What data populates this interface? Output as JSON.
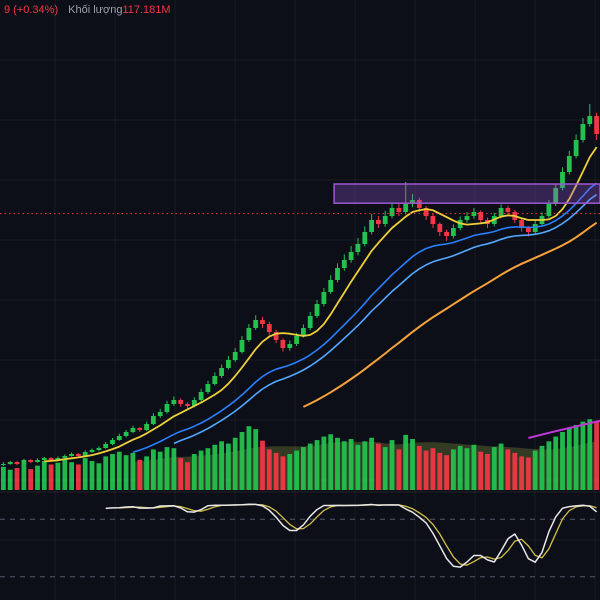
{
  "legend": {
    "price_change": "9 (+0.34%)",
    "volume_label": "Khối lượng",
    "volume_value": "117.181M"
  },
  "colors": {
    "background": "#0c0f17",
    "grid": "rgba(255,255,255,0.05)",
    "up": "#23c14e",
    "down": "#f23645",
    "pane_divider": "rgba(255,255,255,0.08)",
    "osc_level": "#515b6e"
  },
  "chart_data": {
    "type": "candlestick",
    "title": "",
    "xlabel": "",
    "ylabel": "",
    "axes_visible": false,
    "price_scale_note": "no axis labels visible; values are relative units",
    "candles": [
      [
        8.8,
        9.5,
        8.5,
        9
      ],
      [
        9,
        9.8,
        8.8,
        9.5
      ],
      [
        9.5,
        9.7,
        8.7,
        9
      ],
      [
        9,
        10.3,
        8.9,
        10
      ],
      [
        10,
        10.2,
        9.2,
        9.5
      ],
      [
        9.5,
        10.4,
        9.3,
        10
      ],
      [
        10,
        10.8,
        9.8,
        10.5
      ],
      [
        10.5,
        10.7,
        9.7,
        10
      ],
      [
        10,
        10.9,
        9.9,
        10.5
      ],
      [
        10.5,
        11.4,
        10.3,
        11
      ],
      [
        11,
        11.9,
        10.8,
        11.5
      ],
      [
        11.5,
        11.7,
        10.6,
        11
      ],
      [
        11,
        12.4,
        10.9,
        12
      ],
      [
        12,
        12.9,
        11.8,
        12.5
      ],
      [
        12.5,
        13.4,
        12.2,
        13
      ],
      [
        13,
        14.5,
        12.8,
        14
      ],
      [
        14,
        15.5,
        13.7,
        15
      ],
      [
        15,
        16.6,
        14.8,
        16
      ],
      [
        16,
        17.5,
        15.7,
        17
      ],
      [
        17,
        18.6,
        16.7,
        18
      ],
      [
        18,
        18.3,
        17,
        17.5
      ],
      [
        17.5,
        19.6,
        17.2,
        19
      ],
      [
        19,
        21.7,
        18.7,
        21
      ],
      [
        21,
        22.8,
        20.5,
        22
      ],
      [
        22,
        24.8,
        21.6,
        24
      ],
      [
        24,
        25.9,
        23.5,
        25
      ],
      [
        25,
        25.4,
        23.3,
        24
      ],
      [
        24,
        24.4,
        22.7,
        23.5
      ],
      [
        23.5,
        25.7,
        23.1,
        25
      ],
      [
        25,
        27.8,
        24.6,
        27
      ],
      [
        27,
        29.8,
        26.5,
        29
      ],
      [
        29,
        31.9,
        28.6,
        31
      ],
      [
        31,
        33.9,
        30.5,
        33
      ],
      [
        33,
        36,
        32.6,
        35
      ],
      [
        35,
        38,
        34.5,
        37
      ],
      [
        37,
        41,
        36.6,
        40
      ],
      [
        40,
        44,
        39.5,
        43
      ],
      [
        43,
        46.2,
        42.5,
        45
      ],
      [
        45,
        45.8,
        43,
        44
      ],
      [
        44,
        44.6,
        41.2,
        42
      ],
      [
        42,
        42.5,
        39.2,
        40
      ],
      [
        40,
        40.4,
        37.1,
        38
      ],
      [
        38,
        39.9,
        37.3,
        39
      ],
      [
        39,
        41.8,
        38.5,
        41
      ],
      [
        41,
        43.9,
        40.6,
        43
      ],
      [
        43,
        47,
        42.5,
        46
      ],
      [
        46,
        50,
        45.5,
        49
      ],
      [
        49,
        53,
        48.4,
        52
      ],
      [
        52,
        56.2,
        51.5,
        55
      ],
      [
        55,
        59.2,
        54.4,
        58
      ],
      [
        58,
        61.4,
        57.3,
        60
      ],
      [
        60,
        63.5,
        59.3,
        62
      ],
      [
        62,
        65.5,
        61.2,
        64
      ],
      [
        64,
        68.4,
        63.4,
        67
      ],
      [
        67,
        71.5,
        66.4,
        70
      ],
      [
        70,
        71,
        68,
        69
      ],
      [
        69,
        72.3,
        68.3,
        71
      ],
      [
        71,
        74.4,
        70.4,
        73
      ],
      [
        73,
        74,
        71,
        72
      ],
      [
        72,
        79.5,
        71.4,
        74
      ],
      [
        74,
        76.5,
        73.2,
        75
      ],
      [
        75,
        75.6,
        72,
        73
      ],
      [
        73,
        73.5,
        70,
        71
      ],
      [
        71,
        71.6,
        68,
        69
      ],
      [
        69,
        69.4,
        66,
        67
      ],
      [
        67,
        67.6,
        64.8,
        66
      ],
      [
        66,
        68.9,
        65.4,
        68
      ],
      [
        68,
        70.9,
        67.4,
        70
      ],
      [
        70,
        72,
        69.3,
        71
      ],
      [
        71,
        73,
        70.3,
        72
      ],
      [
        72,
        72.4,
        69.2,
        70
      ],
      [
        70,
        70.6,
        68,
        69
      ],
      [
        69,
        71.8,
        68.4,
        71
      ],
      [
        71,
        73.9,
        70.5,
        73
      ],
      [
        73,
        73.6,
        71,
        72
      ],
      [
        72,
        72.5,
        69.2,
        70
      ],
      [
        70,
        70.4,
        67.1,
        68
      ],
      [
        68,
        68.5,
        65.9,
        67
      ],
      [
        67,
        69.8,
        66.4,
        69
      ],
      [
        69,
        71.9,
        68.4,
        71
      ],
      [
        71,
        75,
        70.5,
        74
      ],
      [
        74,
        79,
        73.5,
        78
      ],
      [
        78,
        83.2,
        77.4,
        82
      ],
      [
        82,
        87.3,
        81.4,
        86
      ],
      [
        86,
        91.4,
        85.4,
        90
      ],
      [
        90,
        95.5,
        89.4,
        94
      ],
      [
        94,
        99,
        93.3,
        96
      ],
      [
        96,
        96.8,
        90,
        91.5
      ]
    ],
    "volumes": [
      40,
      35,
      38,
      45,
      36,
      42,
      50,
      44,
      47,
      52,
      48,
      44,
      55,
      50,
      46,
      58,
      62,
      66,
      60,
      64,
      52,
      58,
      70,
      66,
      74,
      72,
      55,
      48,
      62,
      68,
      72,
      78,
      84,
      80,
      90,
      100,
      110,
      105,
      85,
      70,
      64,
      58,
      62,
      68,
      74,
      80,
      86,
      92,
      96,
      90,
      84,
      88,
      78,
      84,
      90,
      80,
      74,
      86,
      70,
      95,
      88,
      76,
      68,
      72,
      64,
      60,
      70,
      76,
      72,
      78,
      66,
      62,
      74,
      80,
      70,
      64,
      58,
      56,
      68,
      76,
      84,
      92,
      100,
      108,
      112,
      118,
      122,
      117.181
    ],
    "indicators": {
      "ma_fast": {
        "type": "sma",
        "period": 7,
        "color": "#f0cf3a",
        "width": 1.8
      },
      "ema_mid1": {
        "type": "ema",
        "period": 20,
        "color": "#2a7fff",
        "width": 1.6
      },
      "ema_mid2": {
        "type": "ema",
        "period": 26,
        "color": "#53a8ff",
        "width": 1.6
      },
      "ma_slow": {
        "type": "sma",
        "period": 45,
        "color": "#f7a23b",
        "width": 2
      },
      "ma_long": {
        "type": "points",
        "color": "#c038d8",
        "width": 2,
        "points": [
          [
            77,
            15.5
          ],
          [
            80,
            16.8
          ],
          [
            83,
            18
          ],
          [
            86,
            19.2
          ],
          [
            89,
            20.4
          ]
        ]
      },
      "volume_ma": {
        "type": "sma",
        "period": 20,
        "fill": "rgba(118,132,58,0.38)"
      },
      "stochastic": {
        "k_period": 14,
        "k_smooth": 3,
        "d_period": 3,
        "k_color": "#e8e8e8",
        "d_color": "#d3c04b",
        "upper_level": 80,
        "lower_level": 20
      }
    },
    "annotations": {
      "rectangle": {
        "from_index": 49,
        "to_index": 92,
        "price_top": 79,
        "price_bottom": 74.2,
        "fill": "rgba(150,85,215,0.30)",
        "stroke": "#9b59d0"
      },
      "price_line": {
        "price": 71.6,
        "color": "#f23645",
        "style": "dotted"
      }
    }
  }
}
